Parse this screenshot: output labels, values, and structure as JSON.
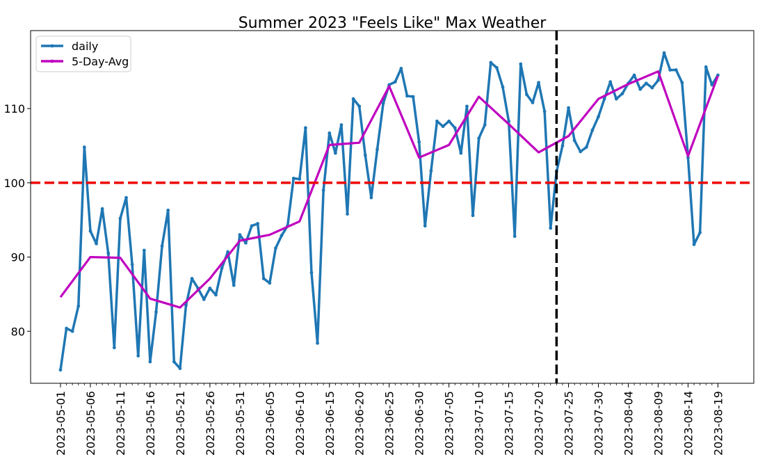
{
  "chart_data": {
    "type": "line",
    "title": "Summer 2023 \"Feels Like\" Max Weather",
    "xlabel": "",
    "ylabel": "",
    "x_range": [
      "2023-04-26",
      "2023-08-25"
    ],
    "ylim": [
      73,
      120.5
    ],
    "y_ticks": [
      80,
      90,
      100,
      110
    ],
    "x_tick_labels": [
      "2023-05-01",
      "2023-05-06",
      "2023-05-11",
      "2023-05-16",
      "2023-05-21",
      "2023-05-26",
      "2023-05-31",
      "2023-06-05",
      "2023-06-10",
      "2023-06-15",
      "2023-06-20",
      "2023-06-25",
      "2023-06-30",
      "2023-07-05",
      "2023-07-10",
      "2023-07-15",
      "2023-07-20",
      "2023-07-25",
      "2023-07-30",
      "2023-08-04",
      "2023-08-09",
      "2023-08-14",
      "2023-08-19"
    ],
    "minor_tick_interval_days": 1,
    "legend_position": "upper-left",
    "grid": false,
    "series": [
      {
        "name": "daily",
        "color": "#1f77b4",
        "marker": "dot",
        "x": [
          "2023-05-01",
          "2023-05-02",
          "2023-05-03",
          "2023-05-04",
          "2023-05-05",
          "2023-05-06",
          "2023-05-07",
          "2023-05-08",
          "2023-05-09",
          "2023-05-10",
          "2023-05-11",
          "2023-05-12",
          "2023-05-13",
          "2023-05-14",
          "2023-05-15",
          "2023-05-16",
          "2023-05-17",
          "2023-05-18",
          "2023-05-19",
          "2023-05-20",
          "2023-05-21",
          "2023-05-22",
          "2023-05-23",
          "2023-05-24",
          "2023-05-25",
          "2023-05-26",
          "2023-05-27",
          "2023-05-28",
          "2023-05-29",
          "2023-05-30",
          "2023-05-31",
          "2023-06-01",
          "2023-06-02",
          "2023-06-03",
          "2023-06-04",
          "2023-06-05",
          "2023-06-06",
          "2023-06-07",
          "2023-06-08",
          "2023-06-09",
          "2023-06-10",
          "2023-06-11",
          "2023-06-12",
          "2023-06-13",
          "2023-06-14",
          "2023-06-15",
          "2023-06-16",
          "2023-06-17",
          "2023-06-18",
          "2023-06-19",
          "2023-06-20",
          "2023-06-21",
          "2023-06-22",
          "2023-06-23",
          "2023-06-24",
          "2023-06-25",
          "2023-06-26",
          "2023-06-27",
          "2023-06-28",
          "2023-06-29",
          "2023-06-30",
          "2023-07-01",
          "2023-07-02",
          "2023-07-03",
          "2023-07-04",
          "2023-07-05",
          "2023-07-06",
          "2023-07-07",
          "2023-07-08",
          "2023-07-09",
          "2023-07-10",
          "2023-07-11",
          "2023-07-12",
          "2023-07-13",
          "2023-07-14",
          "2023-07-15",
          "2023-07-16",
          "2023-07-17",
          "2023-07-18",
          "2023-07-19",
          "2023-07-20",
          "2023-07-21",
          "2023-07-22",
          "2023-07-23",
          "2023-07-24",
          "2023-07-25",
          "2023-07-26",
          "2023-07-27",
          "2023-07-28",
          "2023-07-29",
          "2023-07-30",
          "2023-07-31",
          "2023-08-01",
          "2023-08-02",
          "2023-08-03",
          "2023-08-04",
          "2023-08-05",
          "2023-08-06",
          "2023-08-07",
          "2023-08-08",
          "2023-08-09",
          "2023-08-10",
          "2023-08-11",
          "2023-08-12",
          "2023-08-13",
          "2023-08-14",
          "2023-08-15",
          "2023-08-16",
          "2023-08-17",
          "2023-08-18",
          "2023-08-19"
        ],
        "values": [
          74.8,
          80.4,
          80.0,
          83.4,
          104.8,
          93.5,
          91.8,
          96.5,
          90.5,
          77.8,
          95.2,
          98.0,
          89.0,
          76.7,
          90.9,
          75.9,
          82.6,
          91.5,
          96.3,
          75.9,
          75.0,
          83.5,
          87.1,
          85.8,
          84.3,
          85.8,
          84.9,
          88.5,
          90.7,
          86.2,
          93.0,
          91.9,
          94.2,
          94.5,
          87.1,
          86.5,
          91.2,
          92.9,
          94.2,
          100.6,
          100.5,
          107.4,
          87.9,
          78.4,
          99.0,
          106.7,
          104.0,
          107.8,
          95.8,
          111.3,
          110.3,
          103.7,
          98.0,
          104.5,
          110.7,
          113.2,
          113.6,
          115.4,
          111.7,
          111.6,
          105.5,
          94.2,
          101.6,
          108.3,
          107.6,
          108.3,
          107.4,
          104.0,
          110.3,
          95.6,
          106.0,
          107.8,
          116.2,
          115.5,
          112.9,
          108.3,
          92.8,
          116.0,
          111.9,
          110.8,
          113.5,
          109.6,
          93.9,
          101.5,
          105.0,
          110.1,
          105.7,
          104.2,
          104.8,
          107.1,
          108.9,
          111.3,
          113.6,
          111.3,
          112.0,
          113.4,
          114.5,
          112.6,
          113.4,
          112.8,
          113.8,
          117.5,
          115.2,
          115.2,
          113.5,
          103.4,
          91.7,
          93.3,
          115.6,
          113.2,
          114.5
        ]
      },
      {
        "name": "5-Day-Avg",
        "color": "#bf00bf",
        "marker": "none",
        "x": [
          "2023-05-01",
          "2023-05-06",
          "2023-05-11",
          "2023-05-16",
          "2023-05-21",
          "2023-05-26",
          "2023-05-31",
          "2023-06-05",
          "2023-06-10",
          "2023-06-15",
          "2023-06-20",
          "2023-06-25",
          "2023-06-30",
          "2023-07-05",
          "2023-07-10",
          "2023-07-15",
          "2023-07-20",
          "2023-07-25",
          "2023-07-30",
          "2023-08-04",
          "2023-08-09",
          "2023-08-14",
          "2023-08-19"
        ],
        "values": [
          84.6,
          90.0,
          89.9,
          84.4,
          83.2,
          87.1,
          92.2,
          93.0,
          94.8,
          105.1,
          105.4,
          113.0,
          103.4,
          105.1,
          111.6,
          107.9,
          104.1,
          106.3,
          111.3,
          113.3,
          115.0,
          103.6,
          114.4
        ]
      }
    ],
    "reference_lines": [
      {
        "orientation": "horizontal",
        "value": 100,
        "color": "#ee0000",
        "style": "dashed"
      },
      {
        "orientation": "vertical",
        "value": "2023-07-23",
        "color": "#000000",
        "style": "dashed"
      }
    ]
  }
}
